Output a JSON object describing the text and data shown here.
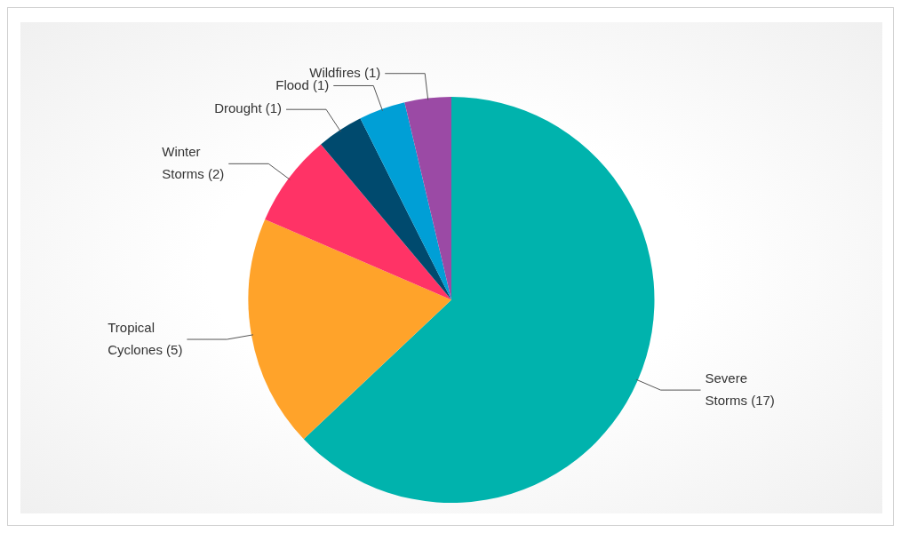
{
  "chart_data": {
    "type": "pie",
    "categories": [
      "Severe Storms",
      "Tropical Cyclones",
      "Winter Storms",
      "Drought",
      "Flood",
      "Wildfires"
    ],
    "values": [
      17,
      5,
      2,
      1,
      1,
      1
    ],
    "colors": [
      "#00b3ad",
      "#ffa32a",
      "#ff3366",
      "#004a6e",
      "#009fd6",
      "#9b4aa5"
    ],
    "value_labels": [
      "(17)",
      "(5)",
      "(2)",
      "(1)",
      "(1)",
      "(1)"
    ],
    "legend": false
  }
}
